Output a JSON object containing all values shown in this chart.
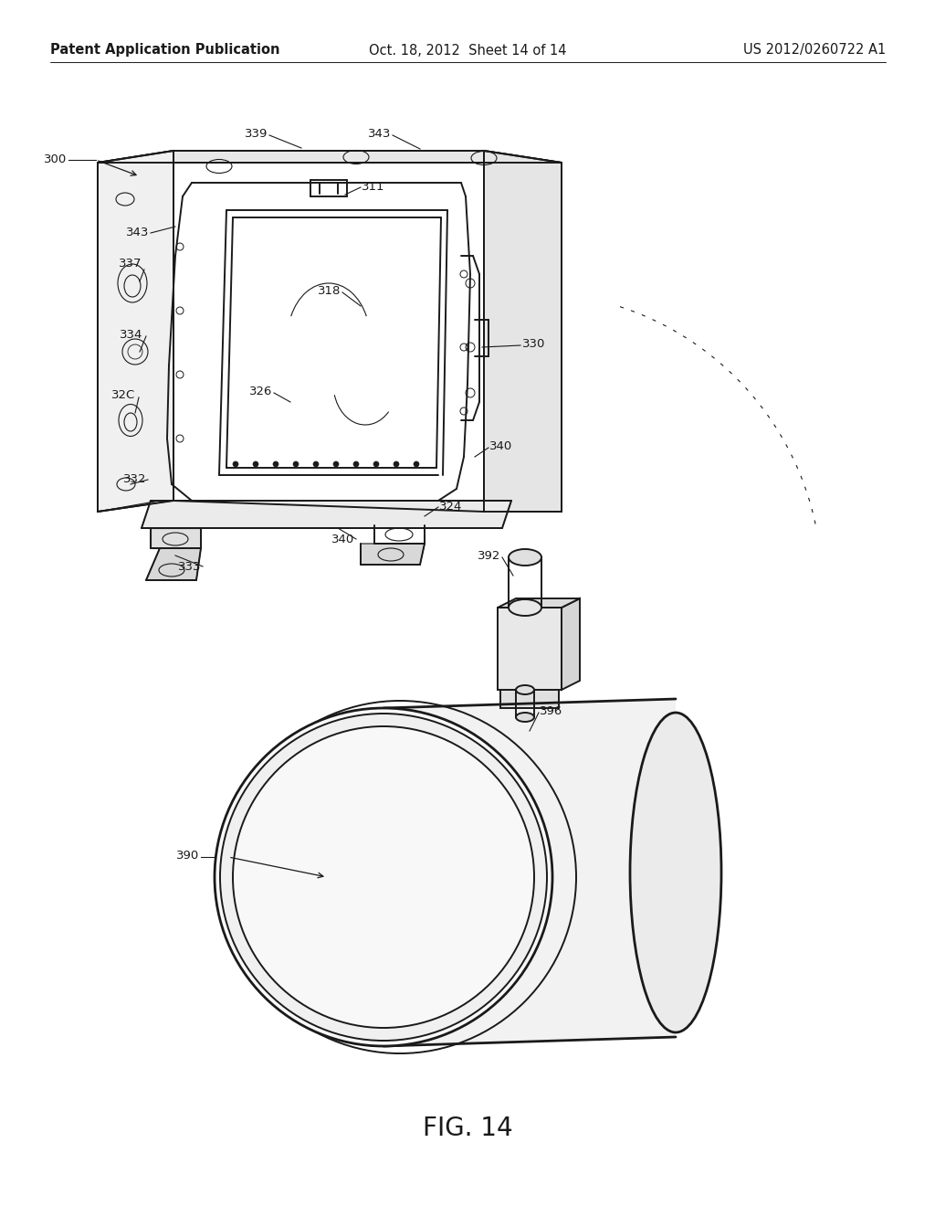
{
  "background_color": "#ffffff",
  "header_left": "Patent Application Publication",
  "header_center": "Oct. 18, 2012  Sheet 14 of 14",
  "header_right": "US 2012/0260722 A1",
  "figure_label": "FIG. 14",
  "header_fontsize": 10.5,
  "figure_label_fontsize": 20,
  "line_color": "#1a1a1a",
  "lw_main": 1.4,
  "lw_thin": 0.8,
  "lw_thick": 2.0
}
